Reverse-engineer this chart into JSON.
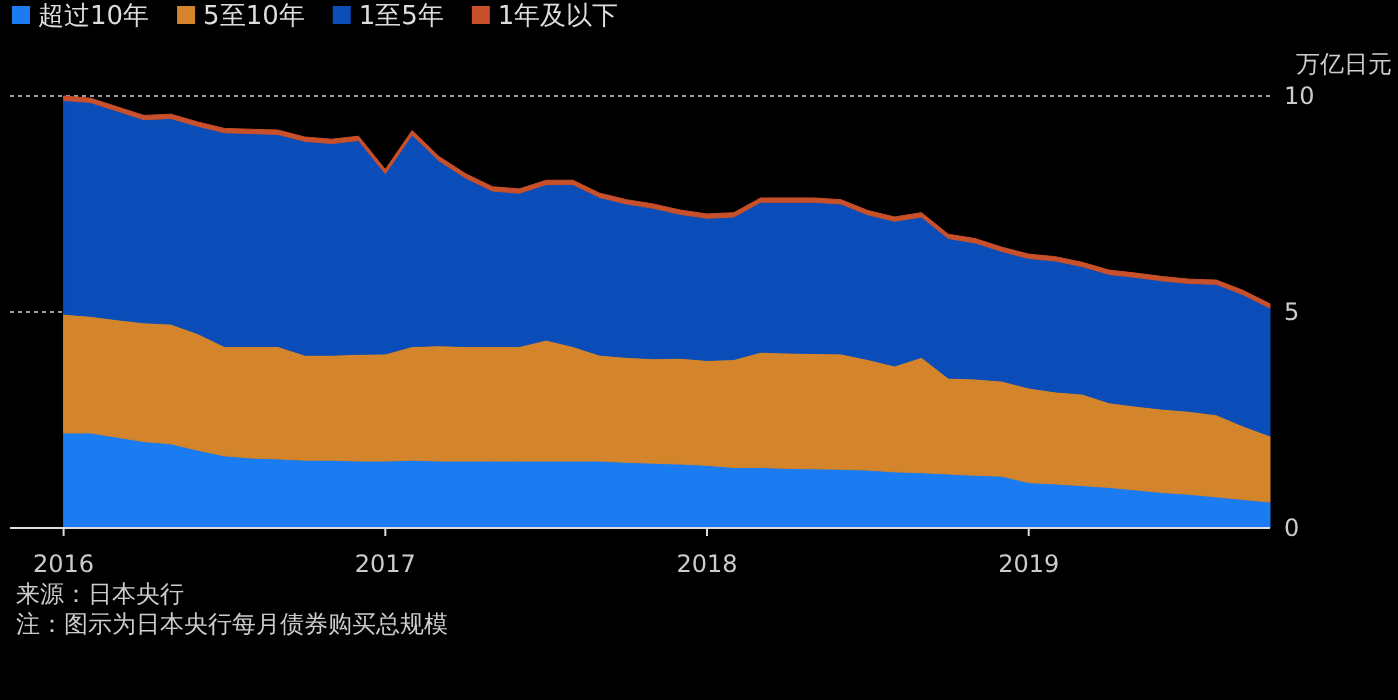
{
  "chart_data": {
    "type": "area",
    "stacked": true,
    "x": [
      "2016-01",
      "2016-02",
      "2016-03",
      "2016-04",
      "2016-05",
      "2016-06",
      "2016-07",
      "2016-08",
      "2016-09",
      "2016-10",
      "2016-11",
      "2016-12",
      "2017-01",
      "2017-02",
      "2017-03",
      "2017-04",
      "2017-05",
      "2017-06",
      "2017-07",
      "2017-08",
      "2017-09",
      "2017-10",
      "2017-11",
      "2017-12",
      "2018-01",
      "2018-02",
      "2018-03",
      "2018-04",
      "2018-05",
      "2018-06",
      "2018-07",
      "2018-08",
      "2018-09",
      "2018-10",
      "2018-11",
      "2018-12",
      "2019-01",
      "2019-02",
      "2019-03",
      "2019-04",
      "2019-05",
      "2019-06",
      "2019-07",
      "2019-08",
      "2019-09",
      "2019-10"
    ],
    "series": [
      {
        "name": "超过10年",
        "color": "#1a7cf0",
        "values": [
          2.2,
          2.2,
          2.1,
          2.0,
          1.95,
          1.8,
          1.67,
          1.62,
          1.6,
          1.57,
          1.57,
          1.55,
          1.55,
          1.57,
          1.55,
          1.55,
          1.55,
          1.55,
          1.55,
          1.55,
          1.55,
          1.52,
          1.5,
          1.48,
          1.45,
          1.4,
          1.4,
          1.38,
          1.37,
          1.36,
          1.34,
          1.3,
          1.28,
          1.25,
          1.22,
          1.2,
          1.05,
          1.02,
          0.98,
          0.94,
          0.88,
          0.82,
          0.78,
          0.72,
          0.66,
          0.6
        ]
      },
      {
        "name": "5至10年",
        "color": "#d4842a",
        "values": [
          2.75,
          2.7,
          2.72,
          2.75,
          2.77,
          2.7,
          2.53,
          2.58,
          2.6,
          2.43,
          2.43,
          2.47,
          2.48,
          2.63,
          2.67,
          2.65,
          2.65,
          2.65,
          2.8,
          2.65,
          2.45,
          2.43,
          2.42,
          2.45,
          2.43,
          2.5,
          2.67,
          2.67,
          2.67,
          2.67,
          2.56,
          2.45,
          2.67,
          2.22,
          2.23,
          2.2,
          2.19,
          2.13,
          2.12,
          1.96,
          1.94,
          1.93,
          1.92,
          1.9,
          1.7,
          1.53
        ]
      },
      {
        "name": "1至5年",
        "color": "#0b4db8",
        "values": [
          4.95,
          4.95,
          4.83,
          4.7,
          4.76,
          4.8,
          4.95,
          4.93,
          4.91,
          4.95,
          4.9,
          4.95,
          4.17,
          4.9,
          4.28,
          3.9,
          3.6,
          3.55,
          3.6,
          3.75,
          3.65,
          3.55,
          3.48,
          3.33,
          3.29,
          3.3,
          3.47,
          3.49,
          3.5,
          3.47,
          3.35,
          3.35,
          3.25,
          3.23,
          3.15,
          3.0,
          3.0,
          3.03,
          2.95,
          2.97,
          2.98,
          2.97,
          2.96,
          3.02,
          3.04,
          2.96
        ]
      },
      {
        "name": "1年及以下",
        "color": "#c8502a",
        "values": [
          0.1,
          0.1,
          0.1,
          0.1,
          0.1,
          0.1,
          0.1,
          0.1,
          0.1,
          0.1,
          0.1,
          0.1,
          0.1,
          0.1,
          0.1,
          0.1,
          0.1,
          0.1,
          0.1,
          0.1,
          0.1,
          0.1,
          0.1,
          0.1,
          0.1,
          0.1,
          0.1,
          0.1,
          0.1,
          0.1,
          0.1,
          0.1,
          0.1,
          0.1,
          0.1,
          0.1,
          0.1,
          0.1,
          0.1,
          0.1,
          0.1,
          0.1,
          0.1,
          0.1,
          0.1,
          0.1
        ]
      }
    ],
    "xlim": [
      "2015-11",
      "2019-10"
    ],
    "xticks": [
      {
        "value": "2016",
        "label": "2016"
      },
      {
        "value": "2017",
        "label": "2017"
      },
      {
        "value": "2018",
        "label": "2018"
      },
      {
        "value": "2019",
        "label": "2019"
      }
    ],
    "ylim": [
      0,
      10
    ],
    "yticks": [
      0,
      5,
      10
    ],
    "ylabel": "万亿日元",
    "grid": "y",
    "legend": "top left",
    "annotations": [
      "来源：日本央行",
      "注：图示为日本央行每月债券购买总规模"
    ]
  }
}
